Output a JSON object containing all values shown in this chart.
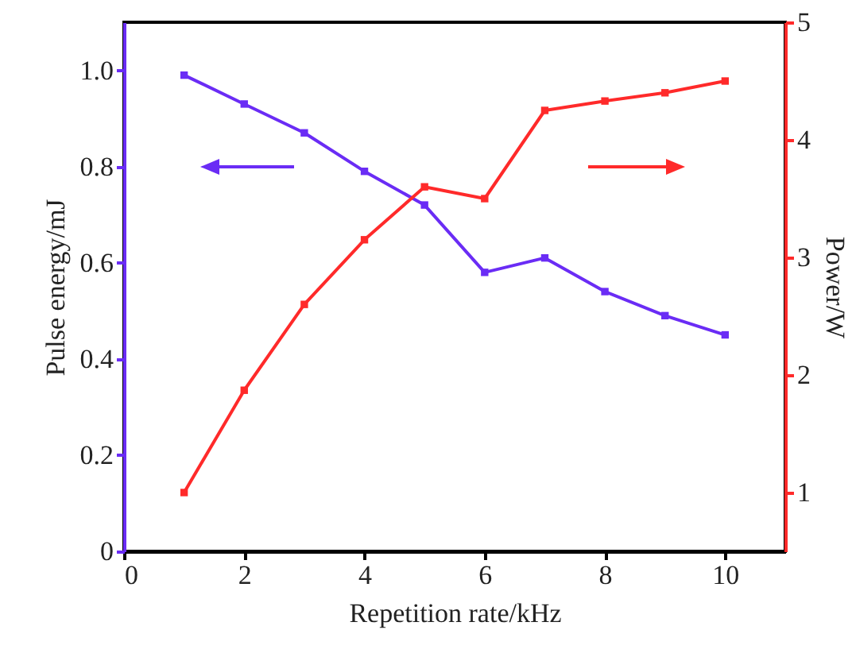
{
  "chart_data": {
    "type": "line",
    "xlabel": "Repetition rate/kHz",
    "ylabel": "Pulse energy/mJ",
    "y2label": "Power/W",
    "x": [
      1,
      2,
      3,
      4,
      5,
      6,
      7,
      8,
      9,
      10
    ],
    "xlim": [
      0,
      11
    ],
    "xticks": [
      0,
      2,
      4,
      6,
      8,
      10
    ],
    "ylim": [
      0,
      1.1
    ],
    "yticks": [
      0,
      0.2,
      0.4,
      0.6,
      0.8,
      {
        "value": 1,
        "label": "1.0"
      }
    ],
    "y2lim": [
      0.5,
      5
    ],
    "y2ticks": [
      1,
      2,
      3,
      4,
      5
    ],
    "marker": "square",
    "line_style": "solid",
    "series": [
      {
        "color": "#6a2cf5",
        "values": [
          0.99,
          0.93,
          0.87,
          0.79,
          0.72,
          0.58,
          0.61,
          0.54,
          0.49,
          0.45
        ]
      },
      {
        "color": "#ff2a2a",
        "axis": "y2",
        "values": [
          1.0,
          1.87,
          2.6,
          3.15,
          3.6,
          3.5,
          4.25,
          4.33,
          4.4,
          4.5
        ]
      }
    ]
  }
}
